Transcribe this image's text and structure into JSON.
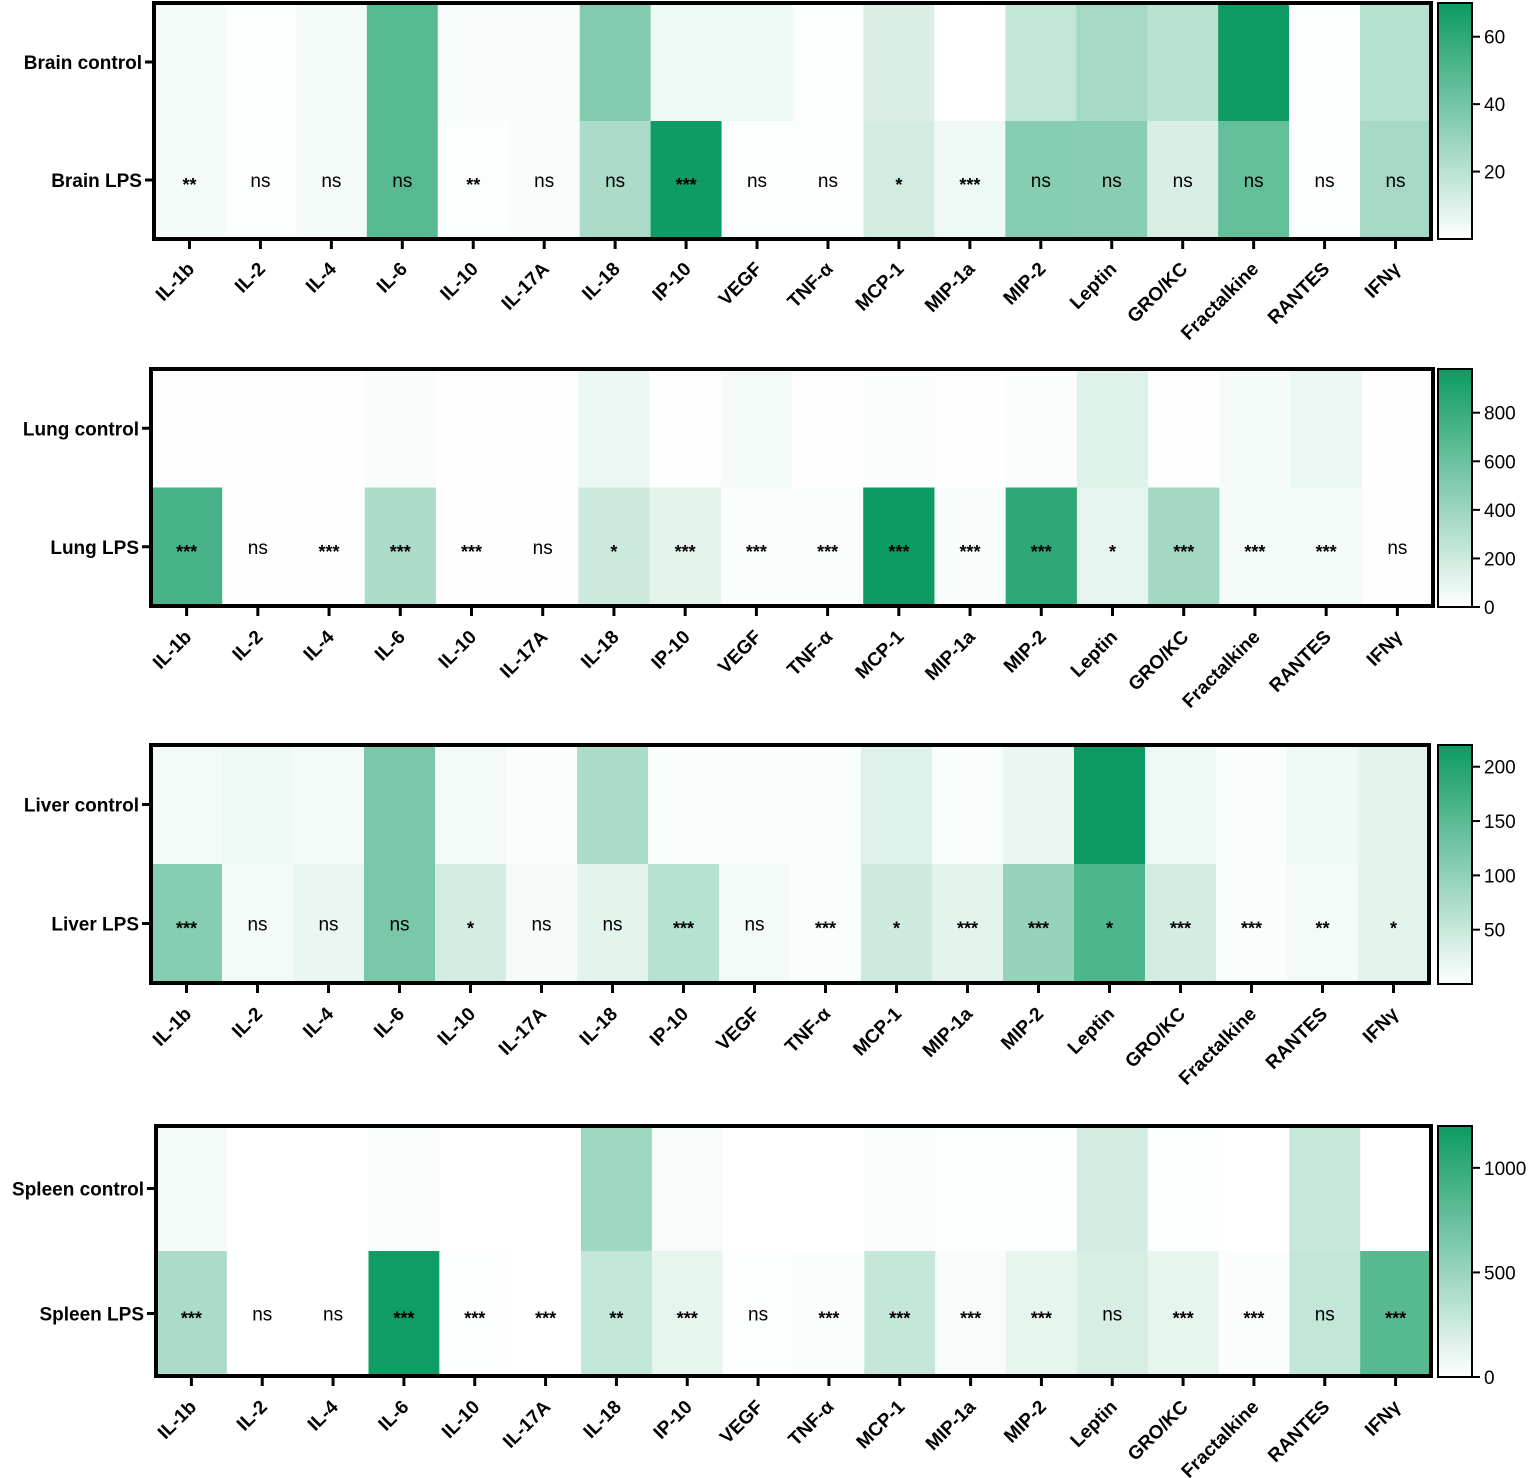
{
  "colors": {
    "low": "#ffffff",
    "high": "#0c9a62",
    "frame": "#000000"
  },
  "chart_data": [
    {
      "type": "heatmap",
      "name": "brain",
      "rows": [
        "Brain control",
        "Brain LPS"
      ],
      "columns": [
        "IL-1b",
        "IL-2",
        "IL-4",
        "IL-6",
        "IL-10",
        "IL-17A",
        "IL-18",
        "IP-10",
        "VEGF",
        "TNF-α",
        "MCP-1",
        "MIP-1a",
        "MIP-2",
        "Leptin",
        "GRO/KC",
        "Fractalkine",
        "RANTES",
        "IFNγ"
      ],
      "values": [
        [
          3,
          1,
          3,
          48,
          2,
          2,
          36,
          5,
          5,
          1,
          11,
          0,
          17,
          26,
          20,
          69,
          1,
          21
        ],
        [
          3,
          1,
          3,
          48,
          1,
          2,
          24,
          69,
          1,
          1,
          13,
          5,
          35,
          34,
          11,
          45,
          1,
          26
        ]
      ],
      "significance": [
        "**",
        "ns",
        "ns",
        "ns",
        "**",
        "ns",
        "ns",
        "***",
        "ns",
        "ns",
        "*",
        "***",
        "ns",
        "ns",
        "ns",
        "ns",
        "ns",
        "ns"
      ],
      "colorbar": {
        "min": 0,
        "max": 70,
        "ticks": [
          "20",
          "40",
          "60"
        ]
      }
    },
    {
      "type": "heatmap",
      "name": "lung",
      "rows": [
        "Lung control",
        "Lung LPS"
      ],
      "columns": [
        "IL-1b",
        "IL-2",
        "IL-4",
        "IL-6",
        "IL-10",
        "IL-17A",
        "IL-18",
        "IP-10",
        "VEGF",
        "TNF-α",
        "MCP-1",
        "MIP-1a",
        "MIP-2",
        "Leptin",
        "GRO/KC",
        "Fractalkine",
        "RANTES",
        "IFNγ"
      ],
      "values": [
        [
          10,
          5,
          5,
          30,
          5,
          5,
          80,
          10,
          50,
          10,
          20,
          10,
          20,
          130,
          10,
          40,
          80,
          5
        ],
        [
          740,
          5,
          10,
          330,
          10,
          5,
          210,
          110,
          20,
          20,
          975,
          30,
          840,
          100,
          370,
          40,
          50,
          10
        ]
      ],
      "significance": [
        "***",
        "ns",
        "***",
        "***",
        "***",
        "ns",
        "*",
        "***",
        "***",
        "***",
        "***",
        "***",
        "***",
        "*",
        "***",
        "***",
        "***",
        "ns"
      ],
      "colorbar": {
        "min": 0,
        "max": 980,
        "ticks": [
          "0",
          "200",
          "400",
          "600",
          "800"
        ]
      }
    },
    {
      "type": "heatmap",
      "name": "liver",
      "rows": [
        "Liver control",
        "Liver LPS"
      ],
      "columns": [
        "IL-1b",
        "IL-2",
        "IL-4",
        "IL-6",
        "IL-10",
        "IL-17A",
        "IL-18",
        "IP-10",
        "VEGF",
        "TNF-α",
        "MCP-1",
        "MIP-1a",
        "MIP-2",
        "Leptin",
        "GRO/KC",
        "Fractalkine",
        "RANTES",
        "IFNγ"
      ],
      "values": [
        [
          10,
          15,
          10,
          120,
          10,
          5,
          75,
          5,
          5,
          5,
          30,
          5,
          20,
          220,
          15,
          5,
          15,
          25
        ],
        [
          110,
          10,
          20,
          120,
          40,
          8,
          25,
          65,
          10,
          5,
          45,
          25,
          95,
          160,
          40,
          5,
          10,
          25
        ]
      ],
      "significance": [
        "***",
        "ns",
        "ns",
        "ns",
        "*",
        "ns",
        "ns",
        "***",
        "ns",
        "***",
        "*",
        "***",
        "***",
        "*",
        "***",
        "***",
        "**",
        "*"
      ],
      "colorbar": {
        "min": 0,
        "max": 220,
        "ticks": [
          "50",
          "100",
          "150",
          "200"
        ]
      }
    },
    {
      "type": "heatmap",
      "name": "spleen",
      "rows": [
        "Spleen control",
        "Spleen LPS"
      ],
      "columns": [
        "IL-1b",
        "IL-2",
        "IL-4",
        "IL-6",
        "IL-10",
        "IL-17A",
        "IL-18",
        "IP-10",
        "VEGF",
        "TNF-α",
        "MCP-1",
        "MIP-1a",
        "MIP-2",
        "Leptin",
        "GRO/KC",
        "Fractalkine",
        "RANTES",
        "IFNγ"
      ],
      "values": [
        [
          50,
          5,
          5,
          20,
          5,
          5,
          480,
          40,
          5,
          5,
          20,
          10,
          15,
          220,
          10,
          5,
          280,
          5
        ],
        [
          420,
          5,
          5,
          1180,
          10,
          5,
          300,
          120,
          10,
          20,
          290,
          40,
          120,
          200,
          120,
          20,
          300,
          830
        ]
      ],
      "significance": [
        "***",
        "ns",
        "ns",
        "***",
        "***",
        "***",
        "**",
        "***",
        "ns",
        "***",
        "***",
        "***",
        "***",
        "ns",
        "***",
        "***",
        "ns",
        "***"
      ],
      "colorbar": {
        "min": 0,
        "max": 1200,
        "ticks": [
          "0",
          "500",
          "1000"
        ]
      }
    }
  ]
}
